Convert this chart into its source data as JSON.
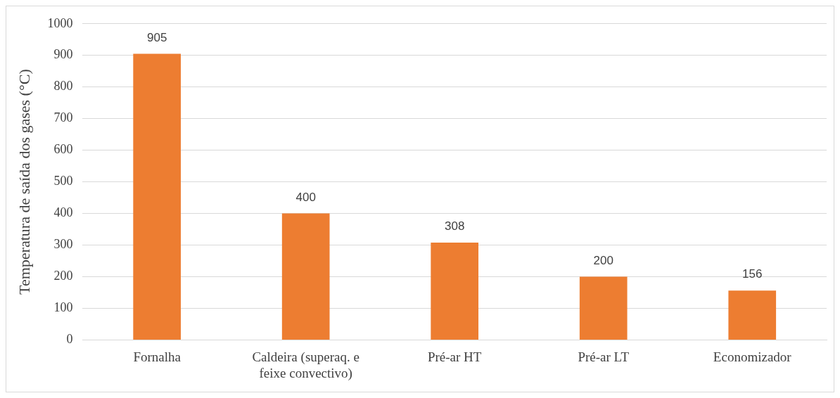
{
  "chart_data": {
    "type": "bar",
    "ylabel": "Temperatura de saída dos gases (°C)",
    "categories": [
      "Fornalha",
      "Caldeira (superaq. e feixe convectivo)",
      "Pré-ar HT",
      "Pré-ar LT",
      "Economizador"
    ],
    "values": [
      905,
      400,
      308,
      200,
      156
    ],
    "color": "#ed7d31",
    "ylim": [
      0,
      1000
    ],
    "yticks": [
      0,
      100,
      200,
      300,
      400,
      500,
      600,
      700,
      800,
      900,
      1000
    ],
    "grid": "y",
    "legend": false,
    "data_labels": true
  }
}
